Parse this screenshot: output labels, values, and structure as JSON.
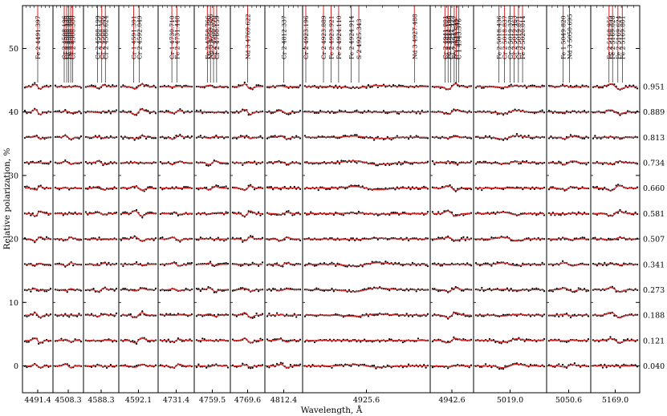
{
  "chart_data": {
    "type": "line",
    "title": "",
    "xlabel": "Wavelength, Å",
    "ylabel": "Relative polarization, %",
    "ylim": [
      -3.5,
      56.5
    ],
    "yticks": [
      0,
      10,
      20,
      30,
      40,
      50
    ],
    "grid": false,
    "series_colors": {
      "observed": "#000000",
      "model": "#d62728"
    },
    "offset_step": 4,
    "phases": [
      "0.040",
      "0.121",
      "0.188",
      "0.273",
      "0.341",
      "0.507",
      "0.581",
      "0.660",
      "0.734",
      "0.813",
      "0.889",
      "0.951"
    ],
    "panels": [
      {
        "center": "4491.4",
        "lines": [
          {
            "label": "Fe 2 4491.397",
            "dx": 0
          }
        ]
      },
      {
        "center": "4508.3",
        "lines": [
          {
            "label": "Cr 2 4508.196",
            "dx": -0.8
          },
          {
            "label": "Cr 2 4508.235",
            "dx": -0.3
          },
          {
            "label": "Fe 2 4508.288",
            "dx": 0.1
          },
          {
            "label": "Cr 2 4508.290",
            "dx": 0.5
          },
          {
            "label": "Cr 2 4508.300",
            "dx": 0.9
          }
        ]
      },
      {
        "center": "4588.3",
        "lines": [
          {
            "label": "Cr 2 4588.199",
            "dx": -0.6
          },
          {
            "label": "Cr 2 4588.386",
            "dx": 0.1
          },
          {
            "label": "Cr 2 4588.624",
            "dx": 0.7
          }
        ]
      },
      {
        "center": "4592.1",
        "lines": [
          {
            "label": "Cr 1 4591.391",
            "dx": -0.7
          },
          {
            "label": "Cr 2 4592.049",
            "dx": 0.1
          }
        ]
      },
      {
        "center": "4731.4",
        "lines": [
          {
            "label": "Cr 1 4730.710",
            "dx": -0.7
          },
          {
            "label": "Fe 2 4731.448",
            "dx": 0.1
          }
        ]
      },
      {
        "center": "4759.5",
        "lines": [
          {
            "label": "Fe 2 4758.766",
            "dx": -0.8
          },
          {
            "label": "Nd 3 4759.526",
            "dx": -0.3
          },
          {
            "label": "Cr 2 4760.070",
            "dx": 0.2
          },
          {
            "label": "Cr 2 4760.159",
            "dx": 0.7
          }
        ]
      },
      {
        "center": "4769.6",
        "lines": [
          {
            "label": "Nd 3 4769.622",
            "dx": 0
          }
        ]
      },
      {
        "center": "4812.4",
        "lines": [
          {
            "label": "Cr 2 4812.337",
            "dx": 0
          }
        ]
      },
      {
        "center": "4925.6",
        "lines": [
          {
            "label": "Cr 2 4923.196",
            "dx": -2.4
          },
          {
            "label": "Cr 2 4923.889",
            "dx": -1.7
          },
          {
            "label": "Fe 2 4923.921",
            "dx": -1.4
          },
          {
            "label": "Fe 2 4924.110",
            "dx": -1.1
          },
          {
            "label": "Fe 2 4924.914",
            "dx": -0.6
          },
          {
            "label": "S 2 4925.343",
            "dx": -0.3
          },
          {
            "label": "Nd 3 4927.488",
            "dx": 1.9
          }
        ]
      },
      {
        "center": "4942.6",
        "lines": [
          {
            "label": "Cr 2 4941.801",
            "dx": -0.9
          },
          {
            "label": "Fe 2 4942.168",
            "dx": -0.5
          },
          {
            "label": "Cr 2 4942.499",
            "dx": -0.15
          },
          {
            "label": "Fe 2 4943.442",
            "dx": 0.3
          },
          {
            "label": "C 1 4943.542",
            "dx": 0.6
          },
          {
            "label": "C 1 4943.576",
            "dx": 0.9
          }
        ]
      },
      {
        "center": "5019.0",
        "lines": [
          {
            "label": "Fe 2 5018.436",
            "dx": -0.8
          },
          {
            "label": "Cr 2 5018.837",
            "dx": -0.4
          },
          {
            "label": "Cr 2 5019.378",
            "dx": 0.0
          },
          {
            "label": "Cr 2 5019.463",
            "dx": 0.3
          },
          {
            "label": "Cr 3 5019.871",
            "dx": 0.6
          },
          {
            "label": "Fe 2 5020.014",
            "dx": 0.9
          }
        ]
      },
      {
        "center": "5050.6",
        "lines": [
          {
            "label": "Fe 1 5049.820",
            "dx": -0.7
          },
          {
            "label": "Nd 3 5050.695",
            "dx": 0.1
          }
        ]
      },
      {
        "center": "5169.0",
        "lines": [
          {
            "label": "Fe 2 5168.955",
            "dx": -0.7
          },
          {
            "label": "Fe 2 5169.028",
            "dx": -0.3
          },
          {
            "label": "Fe 2 5169.624",
            "dx": 0.3
          },
          {
            "label": "Fe 2 5169.801",
            "dx": 0.8
          }
        ]
      }
    ]
  }
}
